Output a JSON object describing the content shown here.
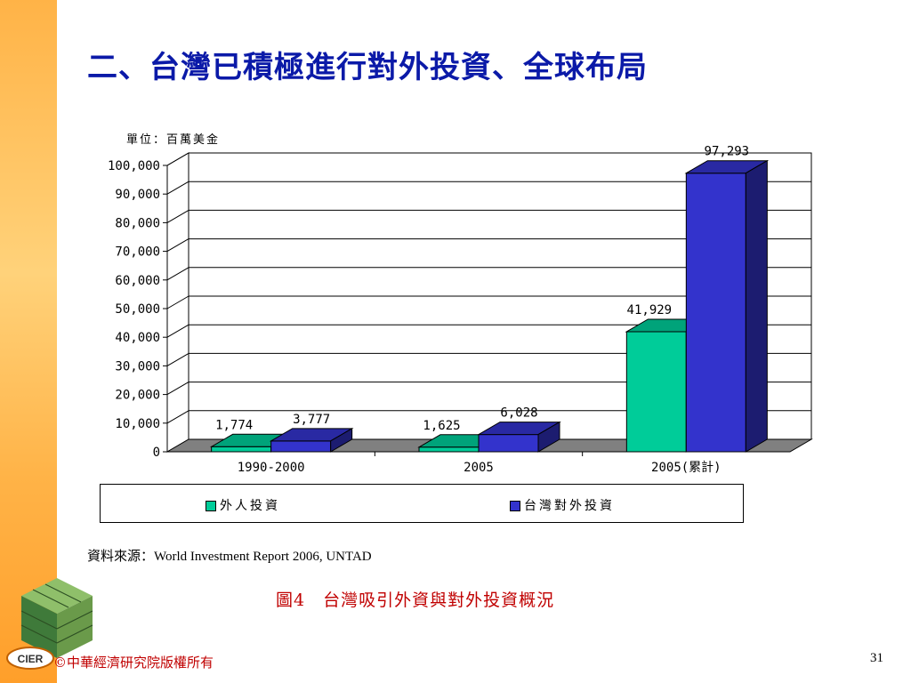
{
  "slide": {
    "title": "二、台灣已積極進行對外投資、全球布局",
    "unit_label": "單位：百萬美金",
    "source": "資料來源：World Investment Report 2006, UNTAD",
    "caption": "圖4　台灣吸引外資與對外投資概況",
    "footer": "©中華經濟研究院版權所有",
    "page_number": "31",
    "logo_text": "CIER"
  },
  "colors": {
    "title": "#0b1aa8",
    "caption": "#c00000",
    "series_foreign": "#00cc99",
    "series_taiwan": "#3333cc",
    "sidebar": "#ffb347"
  },
  "chart_data": {
    "type": "bar",
    "categories": [
      "1990-2000",
      "2005",
      "2005(累計)"
    ],
    "series": [
      {
        "name": "外人投資",
        "values": [
          1774,
          1625,
          41929
        ],
        "labels": [
          "1,774",
          "1,625",
          "41,929"
        ]
      },
      {
        "name": "台灣對外投資",
        "values": [
          3777,
          6028,
          97293
        ],
        "labels": [
          "3,777",
          "6,028",
          "97,293"
        ]
      }
    ],
    "ylim": [
      0,
      100000
    ],
    "yticks": [
      0,
      10000,
      20000,
      30000,
      40000,
      50000,
      60000,
      70000,
      80000,
      90000,
      100000
    ],
    "ytick_labels": [
      "0",
      "10,000",
      "20,000",
      "30,000",
      "40,000",
      "50,000",
      "60,000",
      "70,000",
      "80,000",
      "90,000",
      "100,000"
    ],
    "grid": true,
    "style": "3d",
    "legend_position": "bottom"
  }
}
